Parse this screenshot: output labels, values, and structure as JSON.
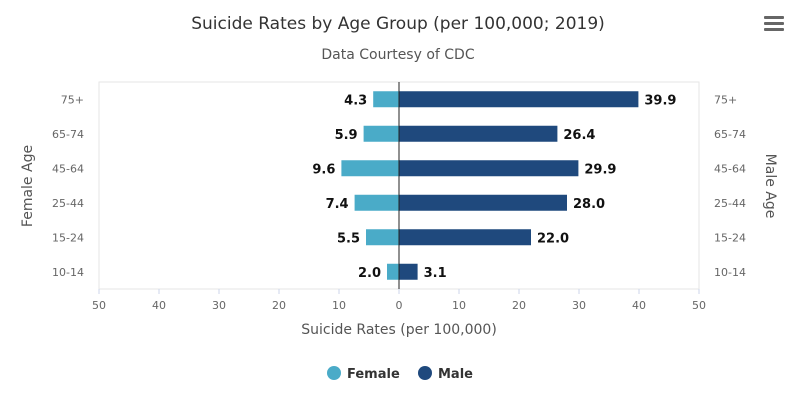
{
  "menu_icon": "hamburger-menu-icon",
  "chart_data": {
    "type": "bar",
    "orientation": "horizontal-diverging",
    "title": "Suicide Rates by Age Group (per 100,000; 2019)",
    "subtitle": "Data Courtesy of CDC",
    "xlabel": "Suicide Rates (per 100,000)",
    "ylabel_left": "Female Age",
    "ylabel_right": "Male Age",
    "xlim": [
      -50,
      50
    ],
    "x_ticks": [
      -50,
      -40,
      -30,
      -20,
      -10,
      0,
      10,
      20,
      30,
      40,
      50
    ],
    "x_tick_labels": [
      "50",
      "40",
      "30",
      "20",
      "10",
      "0",
      "10",
      "20",
      "30",
      "40",
      "50"
    ],
    "categories": [
      "75+",
      "65-74",
      "45-64",
      "25-44",
      "15-24",
      "10-14"
    ],
    "series": [
      {
        "name": "Female",
        "color": "#4aabc8",
        "side": "left",
        "values": [
          4.3,
          5.9,
          9.6,
          7.4,
          5.5,
          2.0
        ]
      },
      {
        "name": "Male",
        "color": "#1f497d",
        "side": "right",
        "values": [
          39.9,
          26.4,
          29.9,
          28.0,
          22.0,
          3.1
        ]
      }
    ],
    "legend_position": "bottom-center",
    "grid": false
  }
}
